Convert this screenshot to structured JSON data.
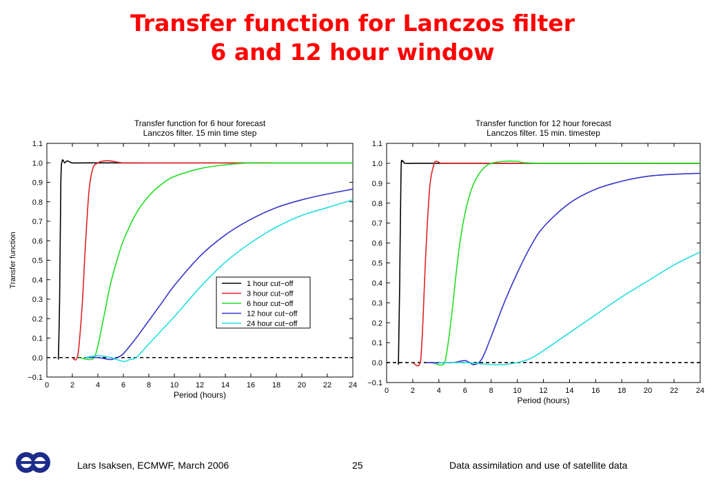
{
  "slide": {
    "title_line_1": "Transfer function for Lanczos filter",
    "title_line_2": "6 and 12 hour window"
  },
  "footer": {
    "author": "Lars Isaksen, ECMWF, March 2006",
    "page": "25",
    "topic": "Data assimilation and use of satellite data",
    "logo_icon": "ecmwf-logo-icon"
  },
  "colors": {
    "title": "#ff0000",
    "series": [
      "#000000",
      "#e02020",
      "#22dd22",
      "#3333cc",
      "#22dddd"
    ]
  },
  "chart_data": [
    {
      "type": "line",
      "title": "Transfer function for 6 hour forecast",
      "subtitle": "Lanczos filter. 15 min time step",
      "xlabel": "Period (hours)",
      "ylabel": "Transfer function",
      "xlim": [
        0,
        24
      ],
      "ylim": [
        -0.1,
        1.1
      ],
      "xticks": [
        0,
        2,
        4,
        6,
        8,
        10,
        12,
        14,
        16,
        18,
        20,
        22,
        24
      ],
      "yticks": [
        -0.1,
        0.0,
        0.1,
        0.2,
        0.3,
        0.4,
        0.5,
        0.6,
        0.7,
        0.8,
        0.9,
        1.0,
        1.1
      ],
      "grid": false,
      "reference_line": 0.0,
      "legend": "center-right",
      "series": [
        {
          "name": "1 hour cut−off",
          "color": "#000000",
          "x": [
            0.9,
            1.0,
            1.1,
            1.2,
            1.4,
            1.6,
            2,
            3,
            5,
            10,
            24
          ],
          "y": [
            -0.01,
            0.3,
            0.9,
            1.01,
            1.0,
            1.01,
            1.0,
            1.0,
            1.0,
            1.0,
            1.0
          ]
        },
        {
          "name": "3 hour cut−off",
          "color": "#e02020",
          "x": [
            2.0,
            2.3,
            2.5,
            2.8,
            3.0,
            3.3,
            3.6,
            4.0,
            4.5,
            5.0,
            6.0,
            8,
            24
          ],
          "y": [
            0.0,
            -0.01,
            0.05,
            0.3,
            0.55,
            0.85,
            0.97,
            1.0,
            1.01,
            1.01,
            1.0,
            1.0,
            1.0
          ]
        },
        {
          "name": "6 hour cut−off",
          "color": "#22dd22",
          "x": [
            2.5,
            3.3,
            3.7,
            4.0,
            4.5,
            5.0,
            5.5,
            6.0,
            7.0,
            8.0,
            9.0,
            10,
            12,
            14,
            16,
            18,
            20,
            24
          ],
          "y": [
            0.0,
            -0.01,
            0.0,
            0.06,
            0.22,
            0.38,
            0.5,
            0.6,
            0.74,
            0.83,
            0.89,
            0.93,
            0.97,
            0.99,
            1.0,
            1.0,
            1.0,
            1.0
          ]
        },
        {
          "name": "12 hour cut−off",
          "color": "#3333cc",
          "x": [
            3.0,
            4.0,
            5.0,
            5.5,
            6.0,
            7.0,
            8.0,
            9.0,
            10,
            12,
            14,
            16,
            18,
            20,
            22,
            24
          ],
          "y": [
            0.0,
            0.0,
            -0.01,
            0.0,
            0.02,
            0.1,
            0.19,
            0.28,
            0.37,
            0.52,
            0.63,
            0.71,
            0.77,
            0.81,
            0.84,
            0.865
          ]
        },
        {
          "name": "24 hour cut−off",
          "color": "#22dddd",
          "x": [
            3.0,
            4.0,
            5.0,
            6.0,
            6.5,
            7.0,
            8.0,
            9.0,
            10,
            12,
            14,
            16,
            18,
            20,
            22,
            24
          ],
          "y": [
            0.0,
            0.01,
            0.0,
            -0.02,
            -0.01,
            0.0,
            0.07,
            0.14,
            0.21,
            0.36,
            0.49,
            0.59,
            0.67,
            0.73,
            0.77,
            0.81
          ]
        }
      ]
    },
    {
      "type": "line",
      "title": "Transfer function for 12 hour forecast",
      "subtitle": "Lanczos filter. 15 min. timestep",
      "xlabel": "Period (hours)",
      "ylabel": "",
      "xlim": [
        0,
        24
      ],
      "ylim": [
        -0.1,
        1.1
      ],
      "xticks": [
        0,
        2,
        4,
        6,
        8,
        10,
        12,
        14,
        16,
        18,
        20,
        22,
        24
      ],
      "yticks": [
        -0.1,
        0.0,
        0.1,
        0.2,
        0.3,
        0.4,
        0.5,
        0.6,
        0.7,
        0.8,
        0.9,
        1.0,
        1.1
      ],
      "grid": false,
      "reference_line": 0.0,
      "legend": "none",
      "series": [
        {
          "name": "",
          "color": "#000000",
          "x": [
            0.9,
            1.0,
            1.1,
            1.2,
            1.4,
            2,
            3,
            5,
            10,
            24
          ],
          "y": [
            -0.01,
            0.4,
            0.95,
            1.01,
            1.0,
            1.0,
            1.0,
            1.0,
            1.0,
            1.0
          ]
        },
        {
          "name": "",
          "color": "#e02020",
          "x": [
            2.0,
            2.5,
            2.7,
            3.0,
            3.3,
            3.6,
            3.8,
            4.2,
            5,
            8,
            24
          ],
          "y": [
            0.0,
            -0.01,
            0.1,
            0.55,
            0.88,
            0.99,
            1.01,
            1.0,
            1.0,
            1.0,
            1.0
          ]
        },
        {
          "name": "",
          "color": "#22dd22",
          "x": [
            3.5,
            4.3,
            4.6,
            5.0,
            5.5,
            6.0,
            6.5,
            7.0,
            7.5,
            8.0,
            9.0,
            10,
            12,
            24
          ],
          "y": [
            0.0,
            -0.01,
            0.05,
            0.25,
            0.55,
            0.75,
            0.87,
            0.94,
            0.98,
            1.0,
            1.01,
            1.01,
            1.0,
            1.0
          ]
        },
        {
          "name": "",
          "color": "#3333cc",
          "x": [
            3.0,
            5.0,
            6.0,
            6.7,
            7.3,
            8.0,
            9.0,
            10,
            11,
            12,
            14,
            16,
            18,
            20,
            22,
            24
          ],
          "y": [
            0.0,
            0.0,
            0.01,
            -0.01,
            0.02,
            0.13,
            0.3,
            0.45,
            0.58,
            0.68,
            0.8,
            0.87,
            0.91,
            0.935,
            0.945,
            0.95
          ]
        },
        {
          "name": "",
          "color": "#22dddd",
          "x": [
            4.0,
            6.0,
            8.0,
            9.0,
            10,
            11,
            12,
            14,
            16,
            18,
            20,
            22,
            24
          ],
          "y": [
            0.0,
            0.0,
            -0.01,
            -0.01,
            0.0,
            0.02,
            0.06,
            0.15,
            0.24,
            0.33,
            0.41,
            0.49,
            0.555
          ]
        }
      ]
    }
  ]
}
